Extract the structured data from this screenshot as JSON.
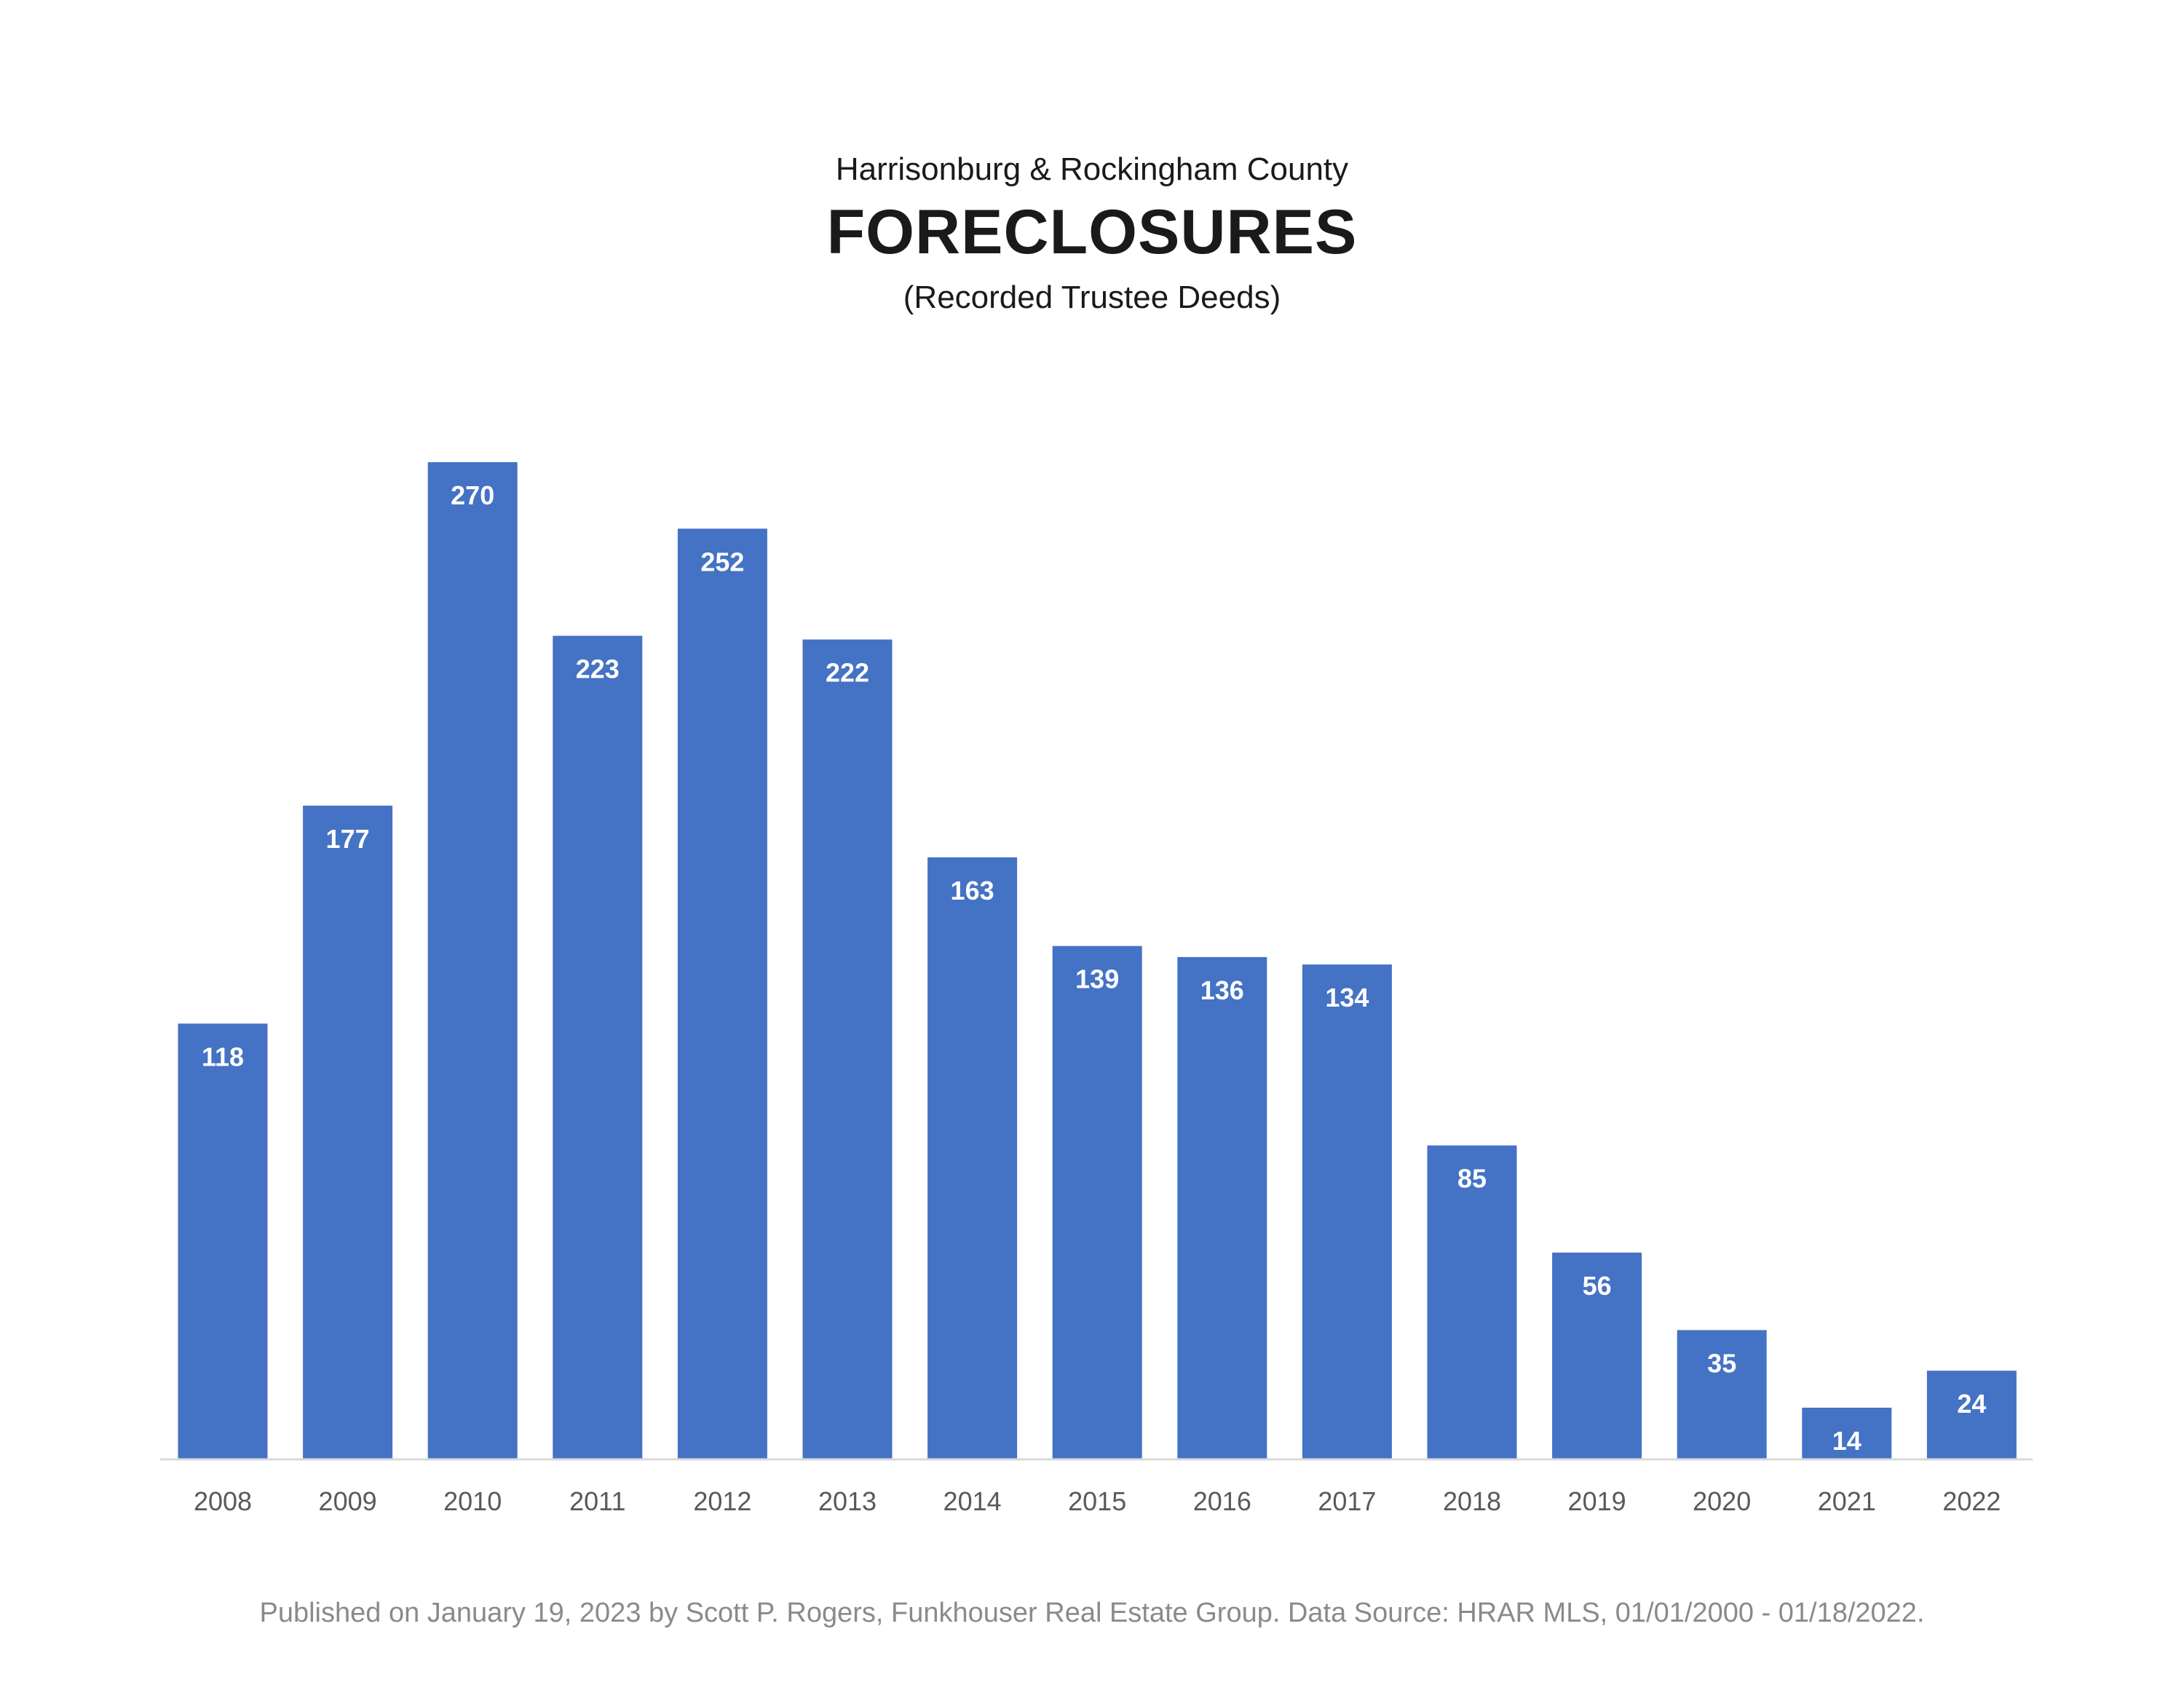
{
  "header": {
    "subtitle_top": "Harrisonburg & Rockingham County",
    "title": "FORECLOSURES",
    "subtitle_bottom": "(Recorded Trustee Deeds)"
  },
  "footer": {
    "text": "Published on January 19, 2023 by Scott P. Rogers, Funkhouser Real Estate Group. Data Source: HRAR MLS, 01/01/2000 - 01/18/2022."
  },
  "chart_data": {
    "type": "bar",
    "title": "FORECLOSURES",
    "subtitle": "(Recorded Trustee Deeds)",
    "categories": [
      "2008",
      "2009",
      "2010",
      "2011",
      "2012",
      "2013",
      "2014",
      "2015",
      "2016",
      "2017",
      "2018",
      "2019",
      "2020",
      "2021",
      "2022"
    ],
    "values": [
      118,
      177,
      270,
      223,
      252,
      222,
      163,
      139,
      136,
      134,
      85,
      56,
      35,
      14,
      24
    ],
    "xlabel": "",
    "ylabel": "",
    "ylim": [
      0,
      270
    ],
    "grid": false,
    "legend": "none",
    "bar_color": "#4472c4",
    "data_labels": "inside-end"
  }
}
